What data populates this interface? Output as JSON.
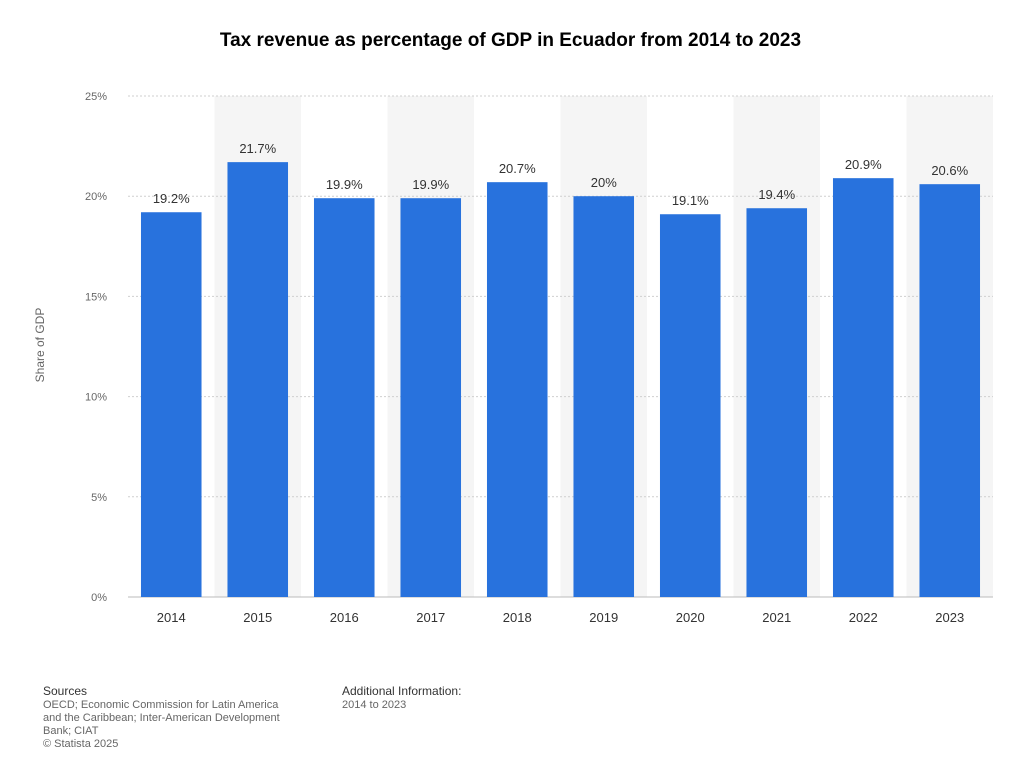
{
  "header": {
    "title": "Tax revenue as percentage of GDP in Ecuador from 2014 to 2023"
  },
  "chart_data": {
    "type": "bar",
    "categories": [
      "2014",
      "2015",
      "2016",
      "2017",
      "2018",
      "2019",
      "2020",
      "2021",
      "2022",
      "2023"
    ],
    "values": [
      19.2,
      21.7,
      19.9,
      19.9,
      20.7,
      20,
      19.1,
      19.4,
      20.9,
      20.6
    ],
    "value_labels": [
      "19.2%",
      "21.7%",
      "19.9%",
      "19.9%",
      "20.7%",
      "20%",
      "19.1%",
      "19.4%",
      "20.9%",
      "20.6%"
    ],
    "ylabel": "Share of GDP",
    "ylim": [
      0,
      25
    ],
    "yticks": [
      0,
      5,
      10,
      15,
      20,
      25
    ],
    "ytick_labels": [
      "0%",
      "5%",
      "10%",
      "15%",
      "20%",
      "25%"
    ],
    "grid": true,
    "bar_color": "#2872dd",
    "alt_band_color": "#f5f5f5"
  },
  "footer": {
    "sources_heading": "Sources",
    "sources_lines": [
      "OECD; Economic Commission for Latin America",
      "and the Caribbean; Inter-American Development",
      "Bank; CIAT",
      "© Statista 2025"
    ],
    "additional_heading": "Additional Information:",
    "additional_text": "2014 to 2023"
  }
}
